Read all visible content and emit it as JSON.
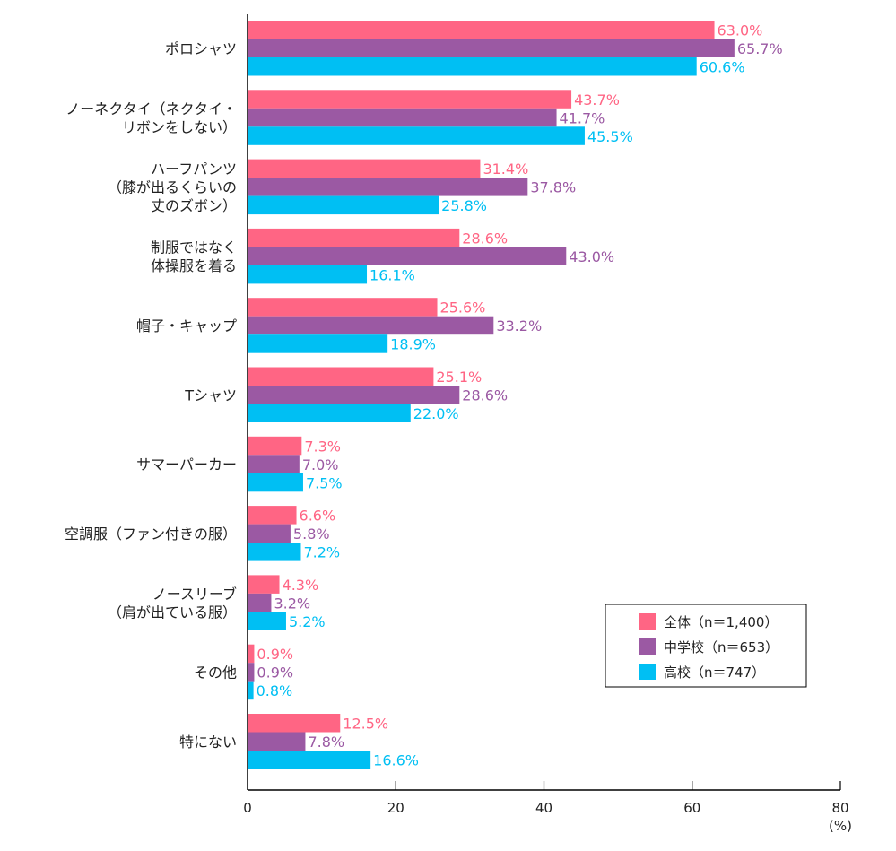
{
  "chart_data": {
    "type": "bar",
    "orientation": "horizontal",
    "title": "",
    "xlabel": "",
    "ylabel": "",
    "unit_label": "(%)",
    "xlim": [
      0,
      80
    ],
    "xticks": [
      0,
      20,
      40,
      60,
      80
    ],
    "grid": false,
    "legend_position": "bottom-right",
    "categories": [
      [
        "ポロシャツ"
      ],
      [
        "ノーネクタイ（ネクタイ・",
        "リボンをしない）"
      ],
      [
        "ハーフパンツ",
        "（膝が出るくらいの",
        "丈のズボン）"
      ],
      [
        "制服ではなく",
        "体操服を着る"
      ],
      [
        "帽子・キャップ"
      ],
      [
        "Tシャツ"
      ],
      [
        "サマーパーカー"
      ],
      [
        "空調服（ファン付きの服）"
      ],
      [
        "ノースリーブ",
        "（肩が出ている服）"
      ],
      [
        "その他"
      ],
      [
        "特にない"
      ]
    ],
    "series": [
      {
        "name": "全体（n＝1,400）",
        "color": "#FF6584",
        "values": [
          63.0,
          43.7,
          31.4,
          28.6,
          25.6,
          25.1,
          7.3,
          6.6,
          4.3,
          0.9,
          12.5
        ]
      },
      {
        "name": "中学校（n＝653）",
        "color": "#9B59A3",
        "values": [
          65.7,
          41.7,
          37.8,
          43.0,
          33.2,
          28.6,
          7.0,
          5.8,
          3.2,
          0.9,
          7.8
        ]
      },
      {
        "name": "高校（n＝747）",
        "color": "#00BFF3",
        "values": [
          60.6,
          45.5,
          25.8,
          16.1,
          18.9,
          22.0,
          7.5,
          7.2,
          5.2,
          0.8,
          16.6
        ]
      }
    ],
    "value_suffix": "%"
  }
}
